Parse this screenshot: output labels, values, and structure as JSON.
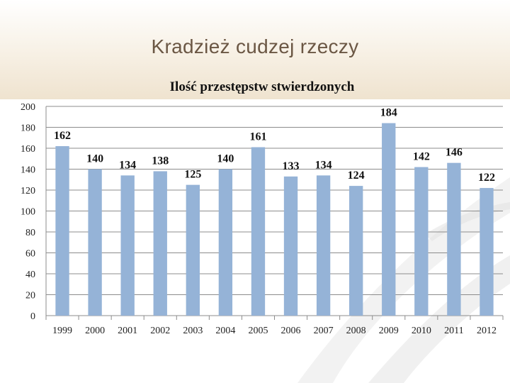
{
  "slide": {
    "title": "Kradzież cudzej rzeczy"
  },
  "chart_data": {
    "type": "bar",
    "title": "Ilość przestępstw stwierdzonych",
    "xlabel": "",
    "ylabel": "",
    "categories": [
      "1999",
      "2000",
      "2001",
      "2002",
      "2003",
      "2004",
      "2005",
      "2006",
      "2007",
      "2008",
      "2009",
      "2010",
      "2011",
      "2012"
    ],
    "values": [
      162,
      140,
      134,
      138,
      125,
      140,
      161,
      133,
      134,
      124,
      184,
      142,
      146,
      122
    ],
    "ylim": [
      0,
      200
    ],
    "yticks": [
      0,
      20,
      40,
      60,
      80,
      100,
      120,
      140,
      160,
      180,
      200
    ],
    "grid": true,
    "data_labels": true,
    "bar_color": "#95b3d7",
    "grid_color": "#8c8c8c"
  }
}
